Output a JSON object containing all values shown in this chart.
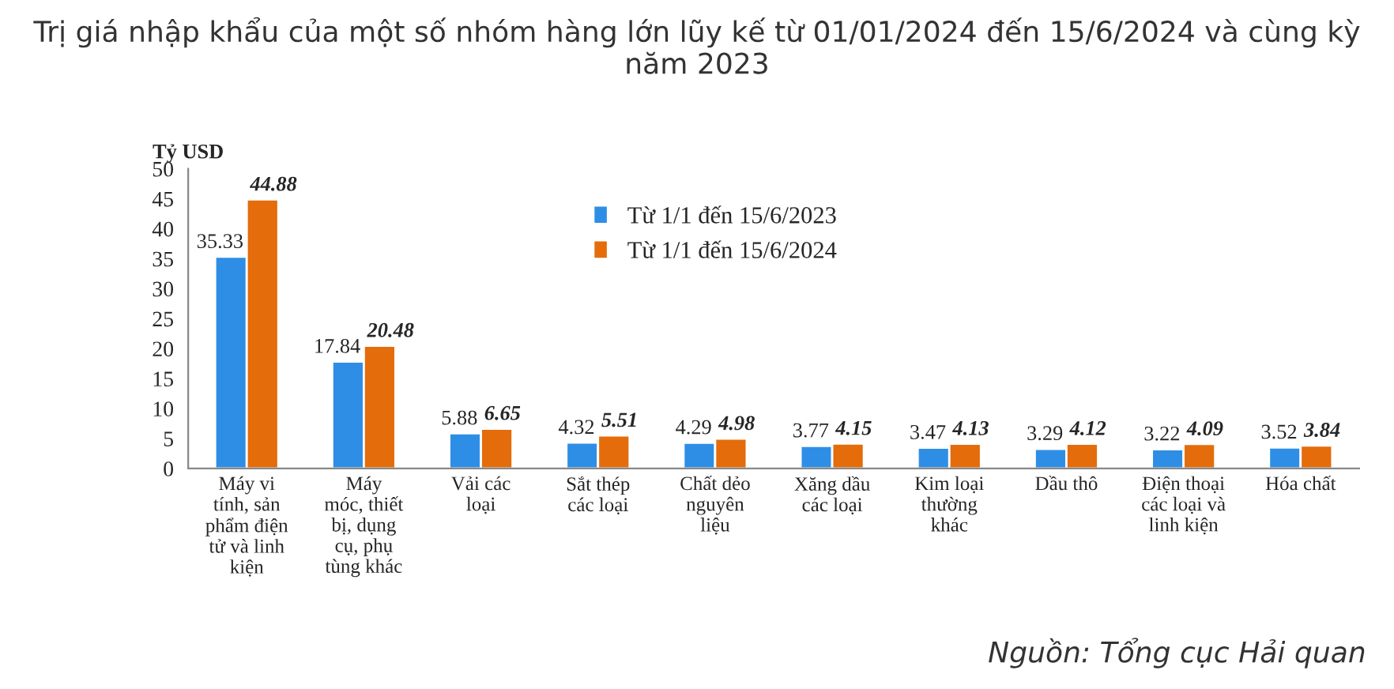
{
  "chart_data": {
    "type": "bar",
    "title": "Trị giá nhập khẩu của một số nhóm hàng lớn lũy kế từ 01/01/2024 đến 15/6/2024 và cùng kỳ năm 2023",
    "ylabel": "Tỷ USD",
    "categories": [
      "Máy vi\ntính, sản\nphẩm điện\ntử và linh\nkiện",
      "Máy\nmóc, thiết\nbị, dụng\ncụ, phụ\ntùng khác",
      "Vải các\nloại",
      "Sắt thép\ncác loại",
      "Chất dẻo\nnguyên\nliệu",
      "Xăng dầu\ncác loại",
      "Kim loại\nthường\nkhác",
      "Dầu thô",
      "Điện thoại\ncác loại và\nlinh kiện",
      "Hóa chất"
    ],
    "series": [
      {
        "name": "Từ 1/1 đến 15/6/2023",
        "color": "#2e8ee6",
        "values": [
          35.33,
          17.84,
          5.88,
          4.32,
          4.29,
          3.77,
          3.47,
          3.29,
          3.22,
          3.52
        ]
      },
      {
        "name": "Từ 1/1 đến 15/6/2024",
        "color": "#e46c0a",
        "values": [
          44.88,
          20.48,
          6.65,
          5.51,
          4.98,
          4.15,
          4.13,
          4.12,
          4.09,
          3.84
        ]
      }
    ],
    "ylim": [
      0,
      50
    ],
    "yticks": [
      0,
      5,
      10,
      15,
      20,
      25,
      30,
      35,
      40,
      45,
      50
    ],
    "data_labels": true,
    "legend": "top",
    "grid": false,
    "annotations": [
      "Nguồn: Tổng cục Hải quan"
    ]
  }
}
